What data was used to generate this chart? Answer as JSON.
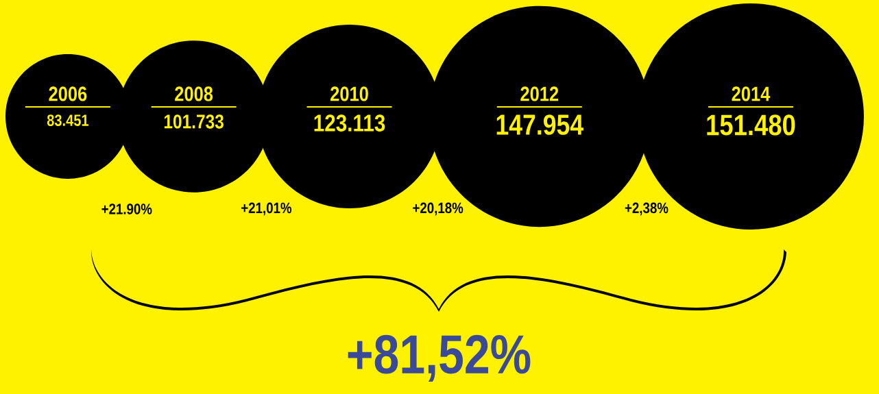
{
  "chart_data": {
    "type": "other",
    "categories": [
      "2006",
      "2008",
      "2010",
      "2012",
      "2014"
    ],
    "values": [
      83451,
      101733,
      123113,
      147954,
      151480
    ],
    "value_labels": [
      "83.451",
      "101.733",
      "123.113",
      "147.954",
      "151.480"
    ],
    "colors": [
      "#000000",
      "#000000",
      "#000000",
      "#000000",
      "#000000"
    ],
    "annotations": [
      "+21.90%",
      "+21,01%",
      "+20,18%",
      "+2,38%",
      "+81,52%"
    ]
  }
}
